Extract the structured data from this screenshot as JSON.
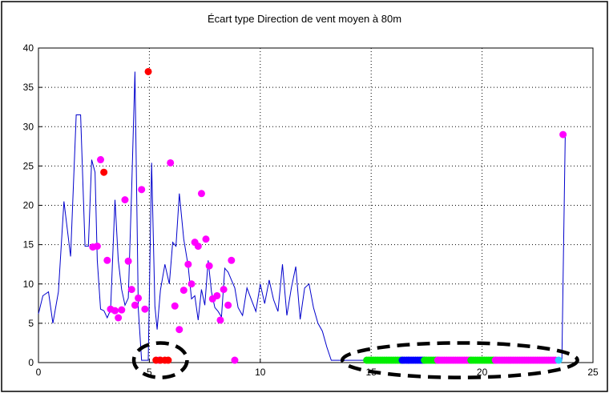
{
  "chart_data": {
    "type": "line",
    "title": "Écart type Direction de vent moyen à 80m",
    "xlabel": "",
    "ylabel": "",
    "xlim": [
      0,
      25
    ],
    "ylim": [
      0,
      40
    ],
    "x_ticks": [
      0,
      5,
      10,
      15,
      20,
      25
    ],
    "y_ticks": [
      0,
      5,
      10,
      15,
      20,
      25,
      30,
      35,
      40
    ],
    "grid": true,
    "colors": {
      "line": "#0000cc",
      "magenta": "#ff00ff",
      "red": "#ff0000",
      "green": "#00ee00",
      "blue": "#0000ff",
      "cyan": "#33ccff",
      "annotation": "#000000"
    },
    "series": [
      {
        "role": "line",
        "x": [
          0,
          0.2,
          0.45,
          0.65,
          0.9,
          1.15,
          1.45,
          1.7,
          1.9,
          2.1,
          2.25,
          2.4,
          2.55,
          2.65,
          2.8,
          2.95,
          3.1,
          3.25,
          3.45,
          3.6,
          3.75,
          3.9,
          4.05,
          4.2,
          4.35,
          4.5,
          4.65,
          4.8,
          4.95,
          5.1,
          5.25,
          5.35,
          5.5,
          5.7,
          5.9,
          6.05,
          6.2,
          6.35,
          6.55,
          6.75,
          6.9,
          7.05,
          7.2,
          7.35,
          7.5,
          7.65,
          7.8,
          7.95,
          8.1,
          8.25,
          8.4,
          8.55,
          8.7,
          8.85,
          9.0,
          9.2,
          9.4,
          9.6,
          9.8,
          10.0,
          10.2,
          10.4,
          10.6,
          10.8,
          11.0,
          11.2,
          11.4,
          11.6,
          11.8,
          12.0,
          12.2,
          12.4,
          12.6,
          12.8,
          13.0,
          13.2,
          13.4,
          13.6,
          13.8,
          14.0,
          14.2,
          14.4,
          14.6,
          14.8,
          15.2,
          16.0,
          17.0,
          18.0,
          19.0,
          20.0,
          21.0,
          22.0,
          23.0,
          23.5,
          23.6,
          23.75
        ],
        "y": [
          6.2,
          8.5,
          9,
          5,
          9,
          20.5,
          13.5,
          31.5,
          31.5,
          14.8,
          14.8,
          25.8,
          24.2,
          13,
          6.8,
          6.6,
          5.7,
          6.7,
          20.7,
          13,
          9.3,
          7.3,
          8.2,
          22,
          37,
          6.8,
          0.3,
          0.3,
          0.3,
          25.4,
          7.2,
          4.2,
          9.2,
          12.5,
          10.0,
          15.3,
          14.8,
          21.5,
          15.7,
          12.3,
          8.1,
          8.5,
          5.4,
          9.3,
          7.3,
          13.0,
          9.0,
          7.0,
          6.5,
          5.8,
          12.0,
          11.5,
          10.5,
          9.5,
          7.0,
          6.0,
          9.5,
          8.0,
          6.5,
          10.0,
          7.5,
          10.5,
          8.0,
          6.5,
          12.5,
          6.0,
          9.5,
          12.2,
          5.5,
          9.5,
          10.0,
          7.0,
          5.0,
          4.0,
          2.0,
          0.3,
          0.3,
          0.3,
          0.3,
          0.3,
          0.3,
          0.3,
          0.3,
          0.3,
          0.3,
          0.3,
          0.3,
          0.3,
          0.3,
          0.3,
          0.3,
          0.3,
          0.3,
          0.3,
          0.3,
          29
        ]
      },
      {
        "role": "markers",
        "color": "magenta",
        "x": [
          2.45,
          2.65,
          2.8,
          3.1,
          3.25,
          3.45,
          3.6,
          3.75,
          3.9,
          4.05,
          4.2,
          4.35,
          4.5,
          4.65,
          4.8,
          5.45,
          5.95,
          6.15,
          6.35,
          6.55,
          6.75,
          6.9,
          7.05,
          7.2,
          7.35,
          7.55,
          7.7,
          7.85,
          8.05,
          8.2,
          8.35,
          8.55,
          8.7,
          8.85,
          23.65
        ],
        "y": [
          14.7,
          14.8,
          25.8,
          13.0,
          6.8,
          6.6,
          5.7,
          6.7,
          20.7,
          12.9,
          9.3,
          7.3,
          8.2,
          22.0,
          6.8,
          0.3,
          25.4,
          7.2,
          4.2,
          9.2,
          12.5,
          10.0,
          15.3,
          14.8,
          21.5,
          15.7,
          12.3,
          8.1,
          8.5,
          5.4,
          9.3,
          7.3,
          13.0,
          0.3,
          29.0
        ]
      },
      {
        "role": "markers",
        "color": "red",
        "x": [
          2.95,
          4.95,
          5.3,
          5.5,
          5.7,
          5.85
        ],
        "y": [
          24.2,
          37.0,
          0.3,
          0.3,
          0.3,
          0.3
        ]
      },
      {
        "role": "markers_band",
        "color": "green",
        "x_from": 14.8,
        "x_to": 16.4,
        "y": 0.3
      },
      {
        "role": "markers_band",
        "color": "blue",
        "x_from": 16.4,
        "x_to": 17.4,
        "y": 0.3
      },
      {
        "role": "markers_band",
        "color": "green",
        "x_from": 17.4,
        "x_to": 18.0,
        "y": 0.3
      },
      {
        "role": "markers_band",
        "color": "magenta",
        "x_from": 18.0,
        "x_to": 19.5,
        "y": 0.3
      },
      {
        "role": "markers_band",
        "color": "green",
        "x_from": 19.5,
        "x_to": 20.6,
        "y": 0.3
      },
      {
        "role": "markers_band",
        "color": "magenta",
        "x_from": 20.6,
        "x_to": 23.3,
        "y": 0.3
      },
      {
        "role": "markers",
        "color": "cyan",
        "x": [
          23.45
        ],
        "y": [
          0.3
        ]
      }
    ],
    "annotations": [
      {
        "type": "dashed-ellipse",
        "cx": 5.5,
        "cy": 0.3,
        "rx": 1.2,
        "ry": 2.2
      },
      {
        "type": "dashed-ellipse",
        "cx": 19.0,
        "cy": 0.3,
        "rx": 5.3,
        "ry": 2.2
      }
    ]
  }
}
